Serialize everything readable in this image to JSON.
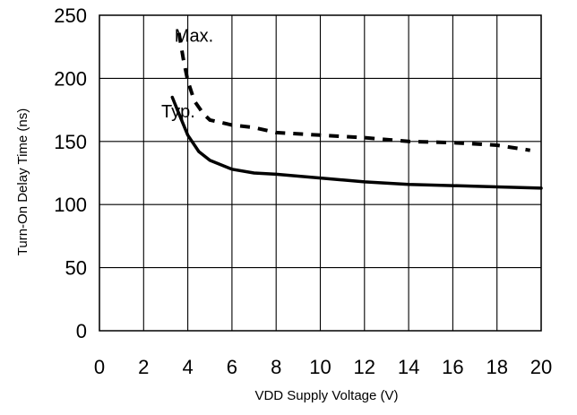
{
  "chart_data": {
    "type": "line",
    "title": "",
    "xlabel": "VDD Supply Voltage (V)",
    "ylabel": "Turn-On Delay Time (ns)",
    "xlim": [
      0,
      20
    ],
    "ylim": [
      0,
      250
    ],
    "x_ticks": [
      0,
      2,
      4,
      6,
      8,
      10,
      12,
      14,
      16,
      18,
      20
    ],
    "x_tick_labels": [
      "0",
      "2",
      "4",
      "6",
      "8",
      "10",
      "12",
      "14",
      "16",
      "18",
      "20"
    ],
    "y_ticks": [
      0,
      50,
      100,
      150,
      200,
      250
    ],
    "y_tick_labels": [
      "0",
      "50",
      "100",
      "150",
      "200",
      "250"
    ],
    "grid": true,
    "series": [
      {
        "name": "Typ.",
        "style": "solid",
        "color": "#000000",
        "points": [
          [
            3.3,
            185
          ],
          [
            3.6,
            172
          ],
          [
            4.0,
            155
          ],
          [
            4.5,
            142
          ],
          [
            5.0,
            135
          ],
          [
            6.0,
            128
          ],
          [
            7.0,
            125
          ],
          [
            8.0,
            124
          ],
          [
            10.0,
            121
          ],
          [
            12.0,
            118
          ],
          [
            14.0,
            116
          ],
          [
            16.0,
            115
          ],
          [
            18.0,
            114
          ],
          [
            20.0,
            113
          ]
        ]
      },
      {
        "name": "Max.",
        "style": "dashed",
        "color": "#000000",
        "points": [
          [
            3.6,
            236
          ],
          [
            3.8,
            215
          ],
          [
            4.0,
            198
          ],
          [
            4.3,
            182
          ],
          [
            4.7,
            172
          ],
          [
            5.0,
            167
          ],
          [
            6.0,
            163
          ],
          [
            7.0,
            161
          ],
          [
            8.0,
            157
          ],
          [
            10.0,
            155
          ],
          [
            12.0,
            153
          ],
          [
            14.0,
            150
          ],
          [
            16.0,
            149
          ],
          [
            18.0,
            147
          ],
          [
            19.5,
            143
          ]
        ]
      }
    ],
    "annotations": [
      {
        "text": "Max.",
        "x": 3.4,
        "y": 229
      },
      {
        "text": "Typ.",
        "x": 2.8,
        "y": 169
      }
    ]
  }
}
